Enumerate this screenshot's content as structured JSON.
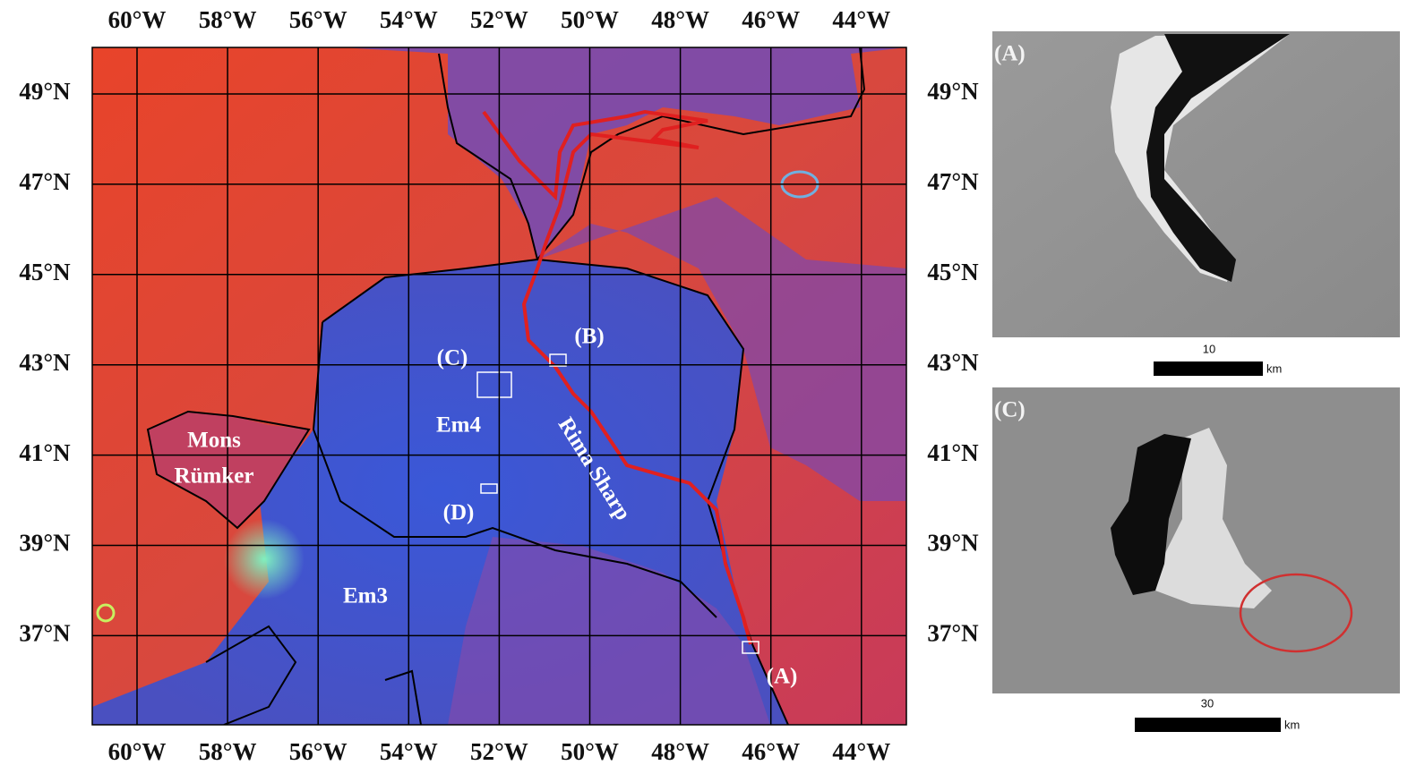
{
  "map": {
    "longitude_labels": [
      "60°W",
      "58°W",
      "56°W",
      "54°W",
      "52°W",
      "50°W",
      "48°W",
      "46°W",
      "44°W"
    ],
    "latitude_labels": [
      "49°N",
      "47°N",
      "45°N",
      "43°N",
      "41°N",
      "39°N",
      "37°N"
    ],
    "features": {
      "c": "(C)",
      "b": "(B)",
      "em4": "Em4",
      "rima": "Rima Sharp",
      "mons": [
        "Mons",
        "Rümker"
      ],
      "d": "(D)",
      "em3": "Em3",
      "a": "(A)"
    }
  },
  "panel_a": {
    "label": "(A)",
    "scale": "10",
    "unit": "km"
  },
  "panel_c": {
    "label": "(C)",
    "scale": "30",
    "unit": "km"
  }
}
